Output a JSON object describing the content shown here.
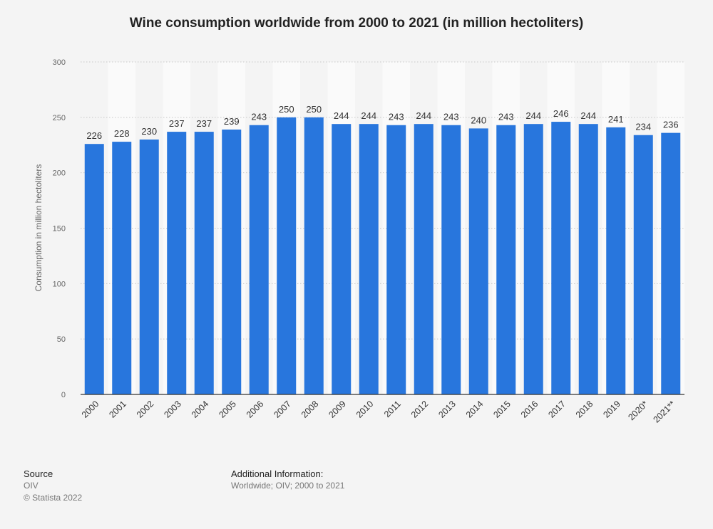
{
  "chart_data": {
    "type": "bar",
    "title": "Wine consumption worldwide from 2000 to 2021 (in million hectoliters)",
    "xlabel": "",
    "ylabel": "Consumption in million hectoliters",
    "categories": [
      "2000",
      "2001",
      "2002",
      "2003",
      "2004",
      "2005",
      "2006",
      "2007",
      "2008",
      "2009",
      "2010",
      "2011",
      "2012",
      "2013",
      "2014",
      "2015",
      "2016",
      "2017",
      "2018",
      "2019",
      "2020*",
      "2021**"
    ],
    "values": [
      226,
      228,
      230,
      237,
      237,
      239,
      243,
      250,
      250,
      244,
      244,
      243,
      244,
      243,
      240,
      243,
      244,
      246,
      244,
      241,
      234,
      236
    ],
    "ylim": [
      0,
      300
    ],
    "yticks": [
      0,
      50,
      100,
      150,
      200,
      250,
      300
    ],
    "grid": true,
    "bar_color": "#2876dd"
  },
  "footer": {
    "source_heading": "Source",
    "source_name": "OIV",
    "copyright": "© Statista 2022",
    "info_heading": "Additional Information:",
    "info_text": "Worldwide; OIV; 2000 to 2021"
  }
}
